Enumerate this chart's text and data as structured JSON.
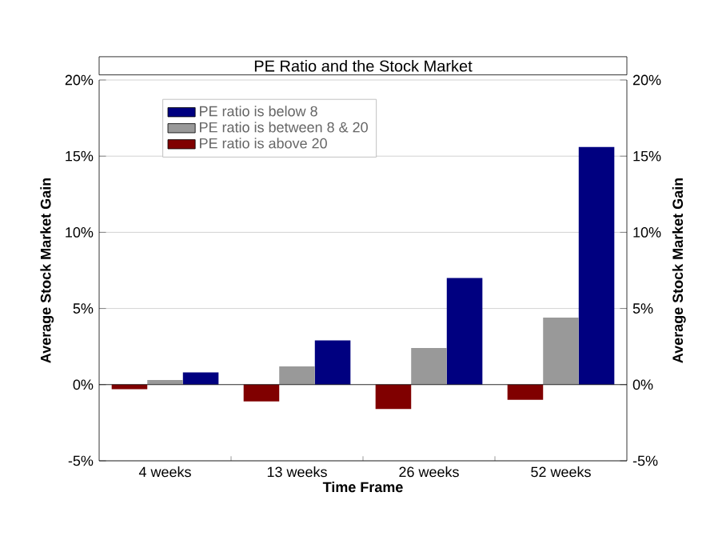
{
  "chart_data": {
    "type": "bar",
    "title": "PE Ratio and the Stock Market",
    "xlabel": "Time Frame",
    "ylabel": "Average Stock Market Gain",
    "y2label": "Average Stock Market Gain",
    "categories": [
      "4 weeks",
      "13 weeks",
      "26 weeks",
      "52 weeks"
    ],
    "series": [
      {
        "name": "PE ratio is below 8",
        "color": "#000080",
        "values": [
          0.8,
          2.9,
          7.0,
          15.6
        ]
      },
      {
        "name": "PE ratio is between 8 & 20",
        "color": "#999999",
        "values": [
          0.3,
          1.2,
          2.4,
          4.4
        ]
      },
      {
        "name": "PE ratio is above 20",
        "color": "#800000",
        "values": [
          -0.3,
          -1.1,
          -1.6,
          -1.0
        ]
      }
    ],
    "ylim": [
      -5,
      20
    ],
    "yticks": [
      {
        "value": -5,
        "label": "-5%"
      },
      {
        "value": 0,
        "label": "0%"
      },
      {
        "value": 5,
        "label": "5%"
      },
      {
        "value": 10,
        "label": "10%"
      },
      {
        "value": 15,
        "label": "15%"
      },
      {
        "value": 20,
        "label": "20%"
      }
    ],
    "y2lim": [
      -5,
      20
    ],
    "y2ticks": [
      {
        "value": -5,
        "label": "-5%"
      },
      {
        "value": 0,
        "label": "0%"
      },
      {
        "value": 5,
        "label": "5%"
      },
      {
        "value": 10,
        "label": "10%"
      },
      {
        "value": 15,
        "label": "15%"
      },
      {
        "value": 20,
        "label": "20%"
      }
    ],
    "grid": "y",
    "legend": "top left"
  }
}
